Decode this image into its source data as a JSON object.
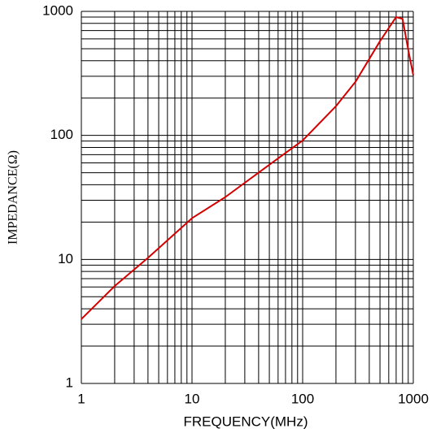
{
  "chart_data": {
    "type": "line",
    "x_label": "FREQUENCY(MHz)",
    "y_label": "IMPEDANCE(Ω)",
    "x": [
      1,
      2,
      4,
      10,
      20,
      50,
      100,
      200,
      300,
      500,
      700,
      800,
      900,
      1000
    ],
    "series": [
      {
        "name": "Impedance",
        "color": "#d40000",
        "values": [
          3.3,
          6.1,
          10.3,
          21.5,
          31.8,
          58,
          91,
          172,
          270,
          575,
          900,
          870,
          490,
          305
        ]
      }
    ],
    "xlim": [
      1,
      1000
    ],
    "ylim": [
      1,
      1000
    ],
    "xticks": [
      1,
      10,
      100,
      1000
    ],
    "yticks": [
      1,
      10,
      100,
      1000
    ],
    "xscale": "log",
    "yscale": "log",
    "grid": true
  }
}
